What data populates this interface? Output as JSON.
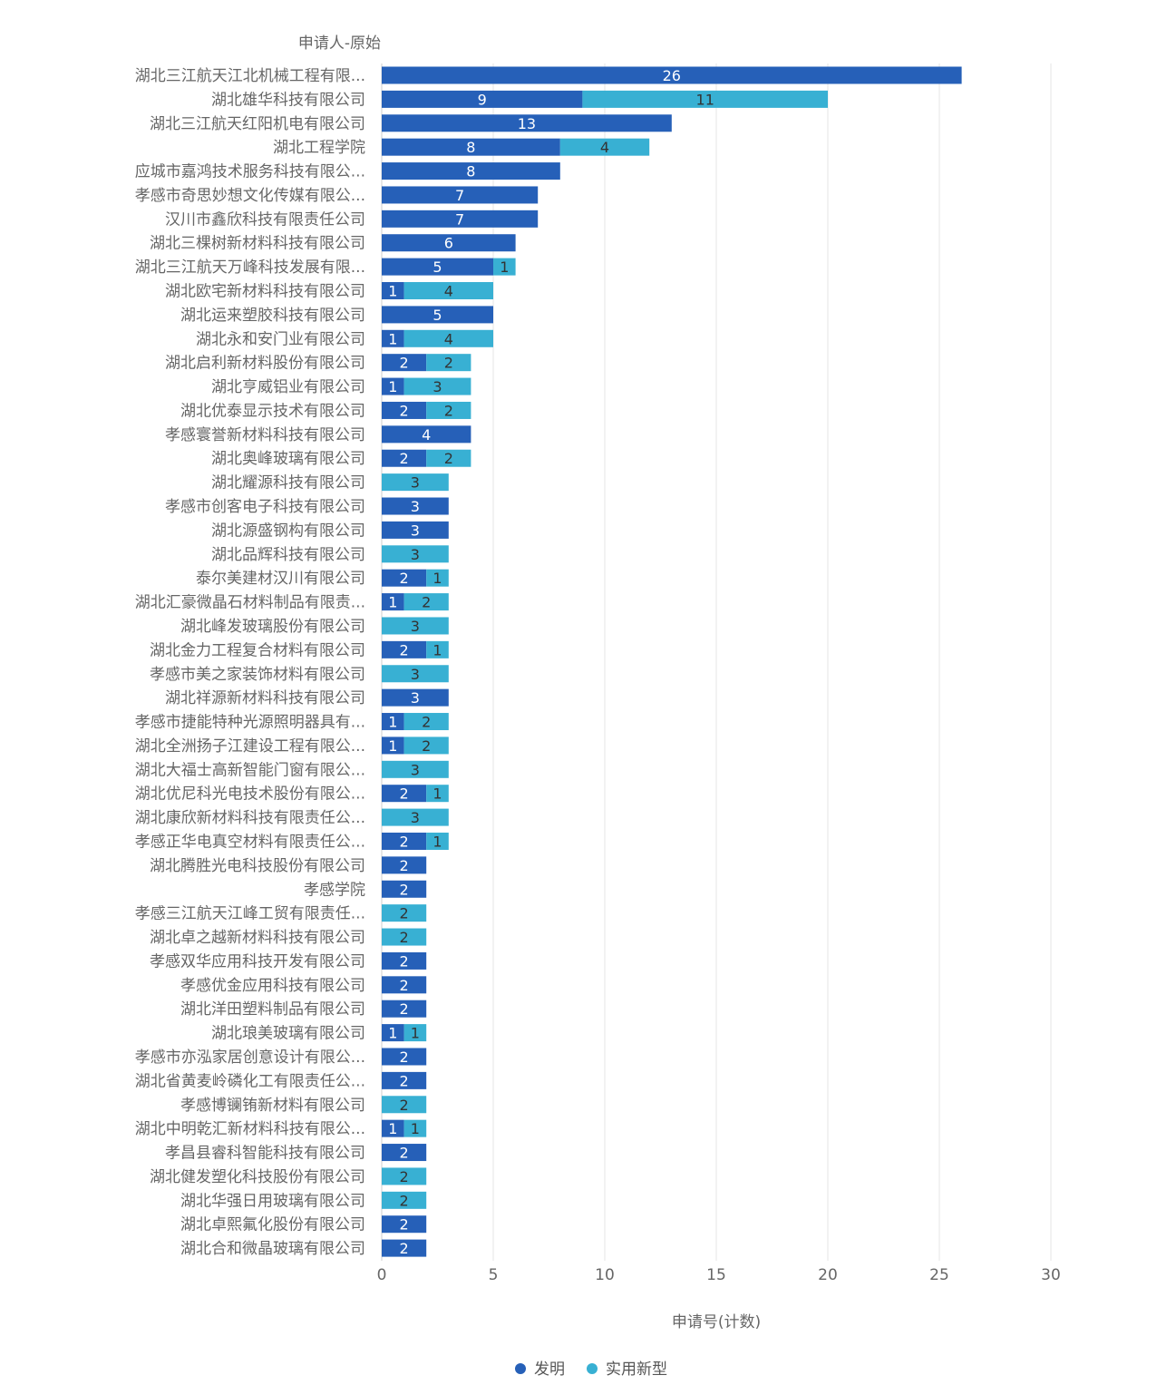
{
  "chart_data": {
    "type": "bar",
    "orientation": "horizontal",
    "stacked": true,
    "title": "",
    "ylabel": "申请人-原始",
    "xlabel": "申请号(计数)",
    "xlim": [
      0,
      30
    ],
    "xticks": [
      "0",
      "5",
      "10",
      "15",
      "20",
      "25",
      "30"
    ],
    "grid": true,
    "legend_position": "bottom-center",
    "categories": [
      "湖北三江航天江北机械工程有限...",
      "湖北雄华科技有限公司",
      "湖北三江航天红阳机电有限公司",
      "湖北工程学院",
      "应城市嘉鸿技术服务科技有限公...",
      "孝感市奇思妙想文化传媒有限公...",
      "汉川市鑫欣科技有限责任公司",
      "湖北三棵树新材料科技有限公司",
      "湖北三江航天万峰科技发展有限...",
      "湖北欧宅新材料科技有限公司",
      "湖北运来塑胶科技有限公司",
      "湖北永和安门业有限公司",
      "湖北启利新材料股份有限公司",
      "湖北亨威铝业有限公司",
      "湖北优泰显示技术有限公司",
      "孝感寰誉新材料科技有限公司",
      "湖北奥峰玻璃有限公司",
      "湖北耀源科技有限公司",
      "孝感市创客电子科技有限公司",
      "湖北源盛钢构有限公司",
      "湖北品辉科技有限公司",
      "泰尔美建材汉川有限公司",
      "湖北汇豪微晶石材料制品有限责...",
      "湖北峰发玻璃股份有限公司",
      "湖北金力工程复合材料有限公司",
      "孝感市美之家装饰材料有限公司",
      "湖北祥源新材料科技有限公司",
      "孝感市捷能特种光源照明器具有...",
      "湖北全洲扬子江建设工程有限公...",
      "湖北大福士高新智能门窗有限公...",
      "湖北优尼科光电技术股份有限公...",
      "湖北康欣新材料科技有限责任公...",
      "孝感正华电真空材料有限责任公...",
      "湖北腾胜光电科技股份有限公司",
      "孝感学院",
      "孝感三江航天江峰工贸有限责任...",
      "湖北卓之越新材料科技有限公司",
      "孝感双华应用科技开发有限公司",
      "孝感优金应用科技有限公司",
      "湖北洋田塑料制品有限公司",
      "湖北琅美玻璃有限公司",
      "孝感市亦泓家居创意设计有限公...",
      "湖北省黄麦岭磷化工有限责任公...",
      "孝感博镧铕新材料有限公司",
      "湖北中明乾汇新材料科技有限公...",
      "孝昌县睿科智能科技有限公司",
      "湖北健发塑化科技股份有限公司",
      "湖北华强日用玻璃有限公司",
      "湖北卓熙氟化股份有限公司",
      "湖北合和微晶玻璃有限公司"
    ],
    "series": [
      {
        "name": "发明",
        "color": "#2660b8",
        "label_color": "#ffffff",
        "values": [
          26,
          9,
          13,
          8,
          8,
          7,
          7,
          6,
          5,
          1,
          5,
          1,
          2,
          1,
          2,
          4,
          2,
          0,
          3,
          3,
          0,
          2,
          1,
          0,
          2,
          0,
          3,
          1,
          1,
          0,
          2,
          0,
          2,
          2,
          2,
          0,
          0,
          2,
          2,
          2,
          1,
          2,
          2,
          0,
          1,
          2,
          0,
          0,
          2,
          2
        ]
      },
      {
        "name": "实用新型",
        "color": "#38b0d3",
        "label_color": "#333333",
        "values": [
          0,
          11,
          0,
          4,
          0,
          0,
          0,
          0,
          1,
          4,
          0,
          4,
          2,
          3,
          2,
          0,
          2,
          3,
          0,
          0,
          3,
          1,
          2,
          3,
          1,
          3,
          0,
          2,
          2,
          3,
          1,
          3,
          1,
          0,
          0,
          2,
          2,
          0,
          0,
          0,
          1,
          0,
          0,
          2,
          1,
          0,
          2,
          2,
          0,
          0
        ]
      }
    ]
  }
}
